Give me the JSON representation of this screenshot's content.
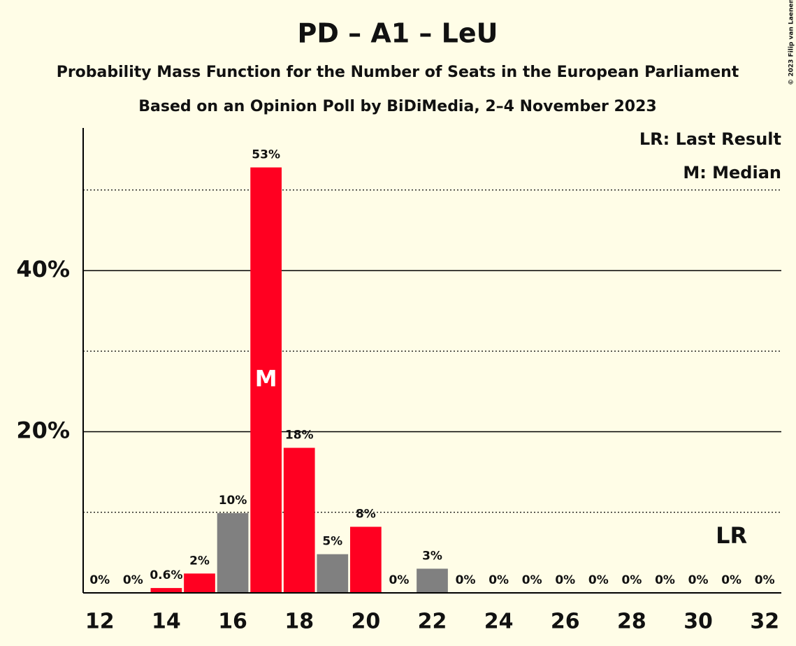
{
  "chart_data": {
    "type": "bar",
    "title": "PD – A1 – LeU",
    "subtitle": "Probability Mass Function for the Number of Seats in the European Parliament",
    "subtitle2": "Based on an Opinion Poll by BiDiMedia, 2–4 November 2023",
    "copyright": "© 2023 Filip van Laenen",
    "x": [
      12,
      13,
      14,
      15,
      16,
      17,
      18,
      19,
      20,
      21,
      22,
      23,
      24,
      25,
      26,
      27,
      28,
      29,
      30,
      31,
      32
    ],
    "values": [
      0,
      0,
      0.6,
      2.4,
      9.9,
      52.8,
      18,
      4.8,
      8.2,
      0,
      3,
      0,
      0,
      0,
      0,
      0,
      0,
      0,
      0,
      0,
      0
    ],
    "value_labels": [
      "0%",
      "0%",
      "0.6%",
      "2%",
      "10%",
      "53%",
      "18%",
      "5%",
      "8%",
      "0%",
      "3%",
      "0%",
      "0%",
      "0%",
      "0%",
      "0%",
      "0%",
      "0%",
      "0%",
      "0%",
      "0%"
    ],
    "colors": [
      "#808080",
      "#808080",
      "#ff0021",
      "#ff0021",
      "#808080",
      "#ff0021",
      "#ff0021",
      "#808080",
      "#ff0021",
      "#808080",
      "#808080",
      "#808080",
      "#808080",
      "#808080",
      "#808080",
      "#808080",
      "#808080",
      "#808080",
      "#808080",
      "#808080",
      "#808080"
    ],
    "xlim": [
      11.5,
      32.5
    ],
    "xticks": [
      12,
      14,
      16,
      18,
      20,
      22,
      24,
      26,
      28,
      30,
      32
    ],
    "ylim": [
      0,
      57.7
    ],
    "yticks": [
      {
        "value": 20,
        "label": "20%"
      },
      {
        "value": 40,
        "label": "40%"
      }
    ],
    "minor_yticks": [
      10,
      30,
      50
    ],
    "grid": true,
    "median": {
      "x": 17,
      "label": "M"
    },
    "last_result": {
      "x": 31,
      "label": "LR"
    },
    "legend": [
      "LR: Last Result",
      "M: Median"
    ]
  }
}
